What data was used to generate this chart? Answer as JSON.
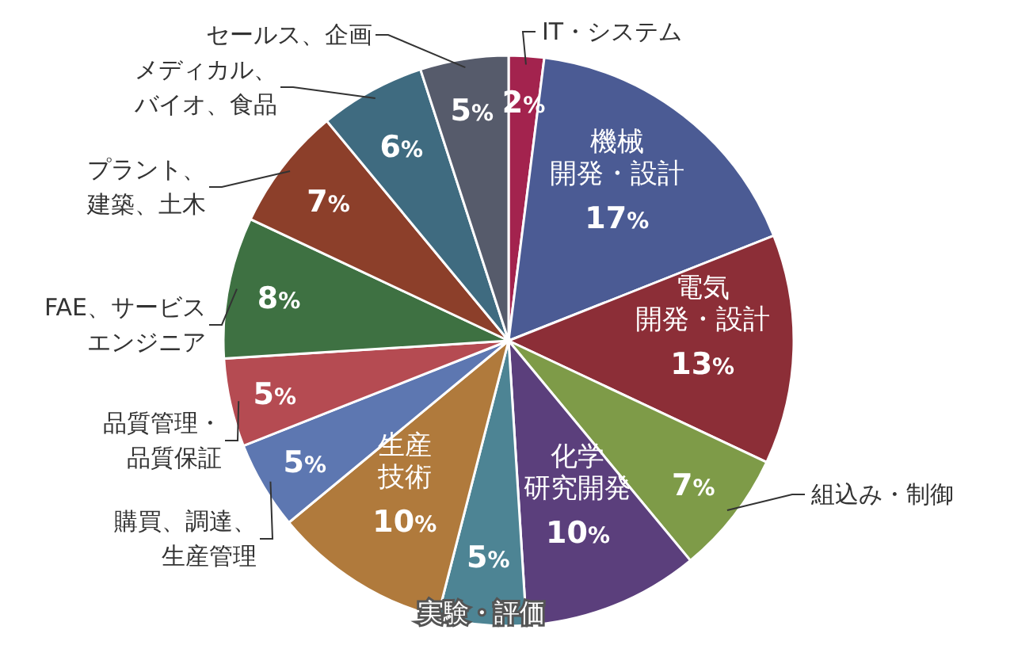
{
  "chart_data": {
    "type": "pie",
    "categories": [
      "IT・システム",
      "機械開発・設計",
      "電気開発・設計",
      "組込み・制御",
      "化学研究開発",
      "実験・評価",
      "生産技術",
      "購買、調達、生産管理",
      "品質管理・品質保証",
      "FAE、サービスエンジニア",
      "プラント、建築、土木",
      "メディカル、バイオ、食品",
      "セールス、企画"
    ],
    "values": [
      2,
      17,
      13,
      7,
      10,
      5,
      10,
      5,
      5,
      8,
      7,
      6,
      5
    ],
    "value_labels": [
      "2%",
      "17%",
      "13%",
      "7%",
      "10%",
      "5%",
      "10%",
      "5%",
      "5%",
      "8%",
      "7%",
      "6%",
      "5%"
    ],
    "colors": [
      "#a3234e",
      "#4b5b94",
      "#8c2e37",
      "#7e9b48",
      "#5b3f7c",
      "#4d8494",
      "#b07a3c",
      "#5d77b1",
      "#b54b52",
      "#3e7142",
      "#8c3f2a",
      "#3f6b80",
      "#565b6b"
    ]
  }
}
